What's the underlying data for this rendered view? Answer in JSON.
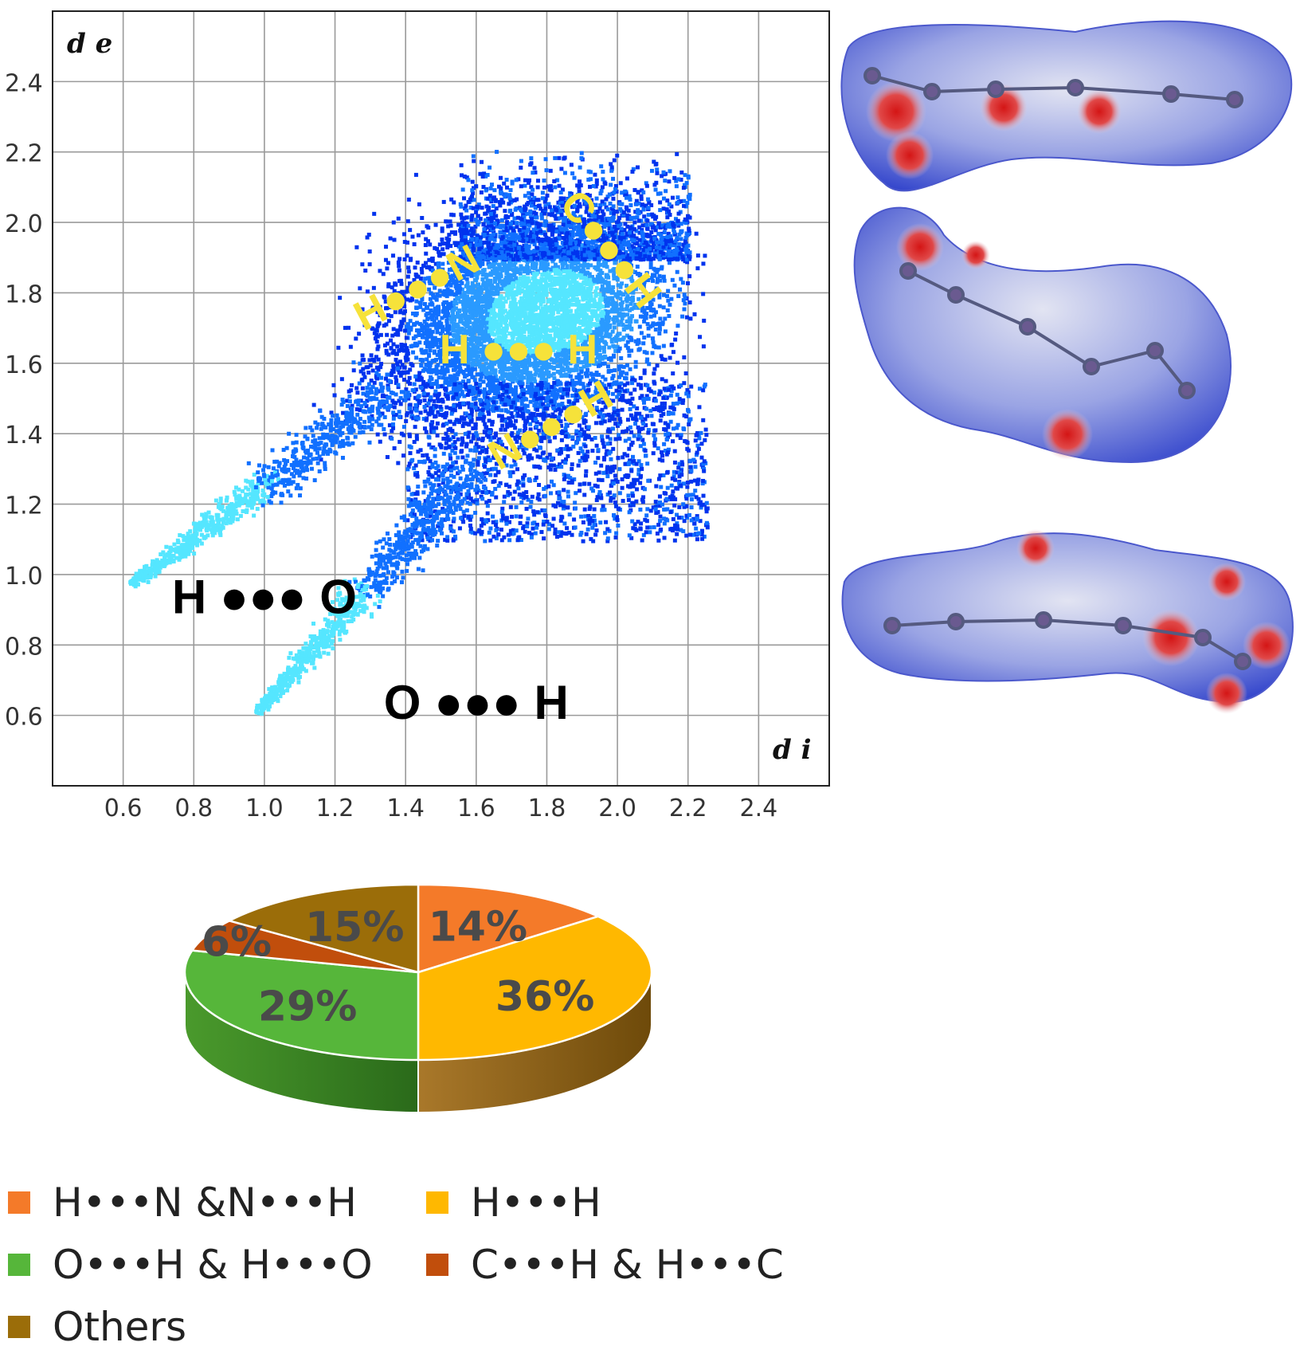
{
  "colors": {
    "scatter_dense": "#55e6ff",
    "scatter_mid": "#1170ff",
    "scatter_sparse": "#0033ee",
    "annotation_yellow": "#f6e23a",
    "surface_blue": "#3b4fd6",
    "surface_red": "#d81e1e"
  },
  "chart_data": [
    {
      "type": "scatter",
      "title": "",
      "xlabel": "d i",
      "ylabel": "d e",
      "xlim": [
        0.4,
        2.6
      ],
      "ylim": [
        0.4,
        2.6
      ],
      "xticks": [
        "0.6",
        "0.8",
        "1.0",
        "1.2",
        "1.4",
        "1.6",
        "1.8",
        "2.0",
        "2.2",
        "2.4"
      ],
      "yticks": [
        "0.6",
        "0.8",
        "1.0",
        "1.2",
        "1.4",
        "1.6",
        "1.8",
        "2.0",
        "2.2",
        "2.4"
      ],
      "grid": true,
      "annotations": [
        {
          "text": "H ●●● O",
          "x": 1.0,
          "y": 0.89,
          "color": "black"
        },
        {
          "text": "O ●●● H",
          "x": 1.6,
          "y": 0.59,
          "color": "black"
        },
        {
          "text": "H●●●N",
          "x": 1.45,
          "y": 1.78,
          "color": "yellow"
        },
        {
          "text": "C●●●H",
          "x": 1.95,
          "y": 1.9,
          "color": "yellow"
        },
        {
          "text": "H ●●● H",
          "x": 1.72,
          "y": 1.6,
          "color": "yellow"
        },
        {
          "text": "N●●●H",
          "x": 1.83,
          "y": 1.39,
          "color": "yellow"
        }
      ]
    },
    {
      "type": "pie",
      "title": "",
      "slices": [
        {
          "label": "H•••N &N•••H",
          "value": 14,
          "data_label": "14%",
          "color": "#f47a29"
        },
        {
          "label": "H•••H",
          "value": 36,
          "data_label": "36%",
          "color": "#ffb800"
        },
        {
          "label": "O•••H & H•••O",
          "value": 29,
          "data_label": "29%",
          "color": "#56b63a"
        },
        {
          "label": "C•••H & H•••C",
          "value": 6,
          "data_label": "6%",
          "color": "#c14e0c"
        },
        {
          "label": "Others",
          "value": 15,
          "data_label": "15%",
          "color": "#9b6d09"
        }
      ],
      "legend_position": "bottom"
    }
  ]
}
